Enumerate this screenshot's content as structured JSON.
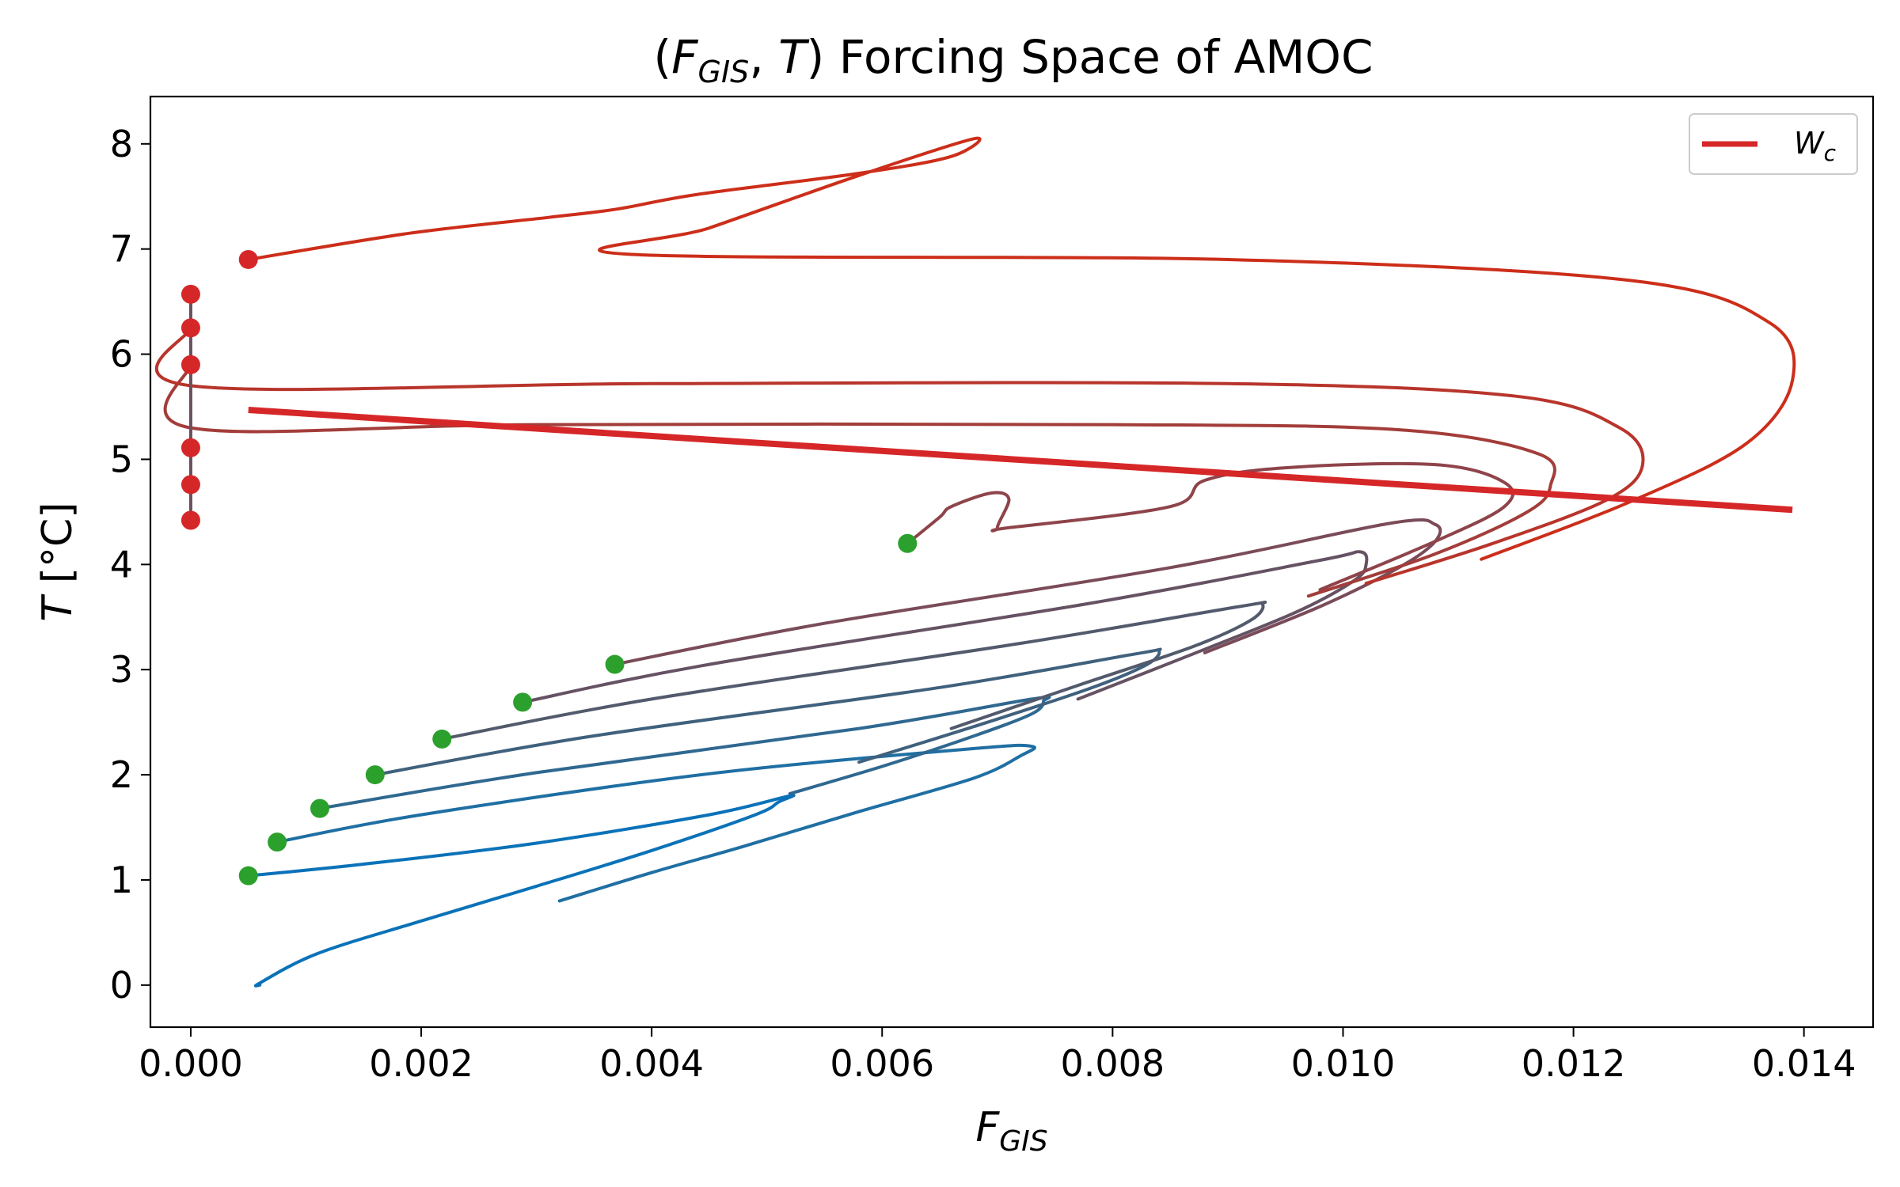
{
  "chart_data": {
    "type": "line",
    "title": "(F_GIS, T) Forcing Space of AMOC",
    "title_parts": {
      "open": "(",
      "f": "F",
      "gis_sub": "GIS",
      "comma": ", ",
      "t": "T",
      "close": ")",
      "rest": " Forcing Space of AMOC"
    },
    "xlabel_parts": {
      "main": "F",
      "sub": "GIS"
    },
    "ylabel_parts": {
      "main": "T",
      "unit": " [°C]"
    },
    "xlim": [
      -0.00035,
      0.0146
    ],
    "ylim": [
      -0.4,
      8.45
    ],
    "xticks": [
      0.0,
      0.002,
      0.004,
      0.006,
      0.008,
      0.01,
      0.012,
      0.014
    ],
    "xtick_labels": [
      "0.000",
      "0.002",
      "0.004",
      "0.006",
      "0.008",
      "0.010",
      "0.012",
      "0.014"
    ],
    "yticks": [
      0,
      1,
      2,
      3,
      4,
      5,
      6,
      7,
      8
    ],
    "ytick_labels": [
      "0",
      "1",
      "2",
      "3",
      "4",
      "5",
      "6",
      "7",
      "8"
    ],
    "grid": false,
    "legend": {
      "position": "top-right",
      "entries": [
        {
          "name_main": "W",
          "name_sub": "c",
          "color": "#d62728"
        }
      ]
    },
    "threshold_line": {
      "name": "W_c",
      "color": "#d62728",
      "x": [
        0.0005,
        0.0139
      ],
      "y": [
        5.47,
        4.52
      ]
    },
    "trajectory_colors": [
      "#0a72b8",
      "#1f6fa3",
      "#2f6890",
      "#40617d",
      "#525a6c",
      "#655263",
      "#7a4b58",
      "#8e444a",
      "#a33d3a",
      "#b8352b",
      "#cc2e1a"
    ],
    "trajectories": [
      {
        "x": [
          0.0005,
          0.0015,
          0.003,
          0.0045,
          0.0052,
          0.0051,
          0.0049,
          0.004,
          0.003,
          0.002,
          0.0011,
          0.0006,
          0.0006
        ],
        "y": [
          1.04,
          1.15,
          1.35,
          1.62,
          1.8,
          1.74,
          1.62,
          1.28,
          0.94,
          0.61,
          0.3,
          0.02,
          0.0
        ]
      },
      {
        "x": [
          0.00075,
          0.002,
          0.0045,
          0.0068,
          0.0073,
          0.0072,
          0.0068,
          0.0058,
          0.0048,
          0.004,
          0.0032
        ],
        "y": [
          1.36,
          1.62,
          2.01,
          2.25,
          2.27,
          2.18,
          1.97,
          1.65,
          1.32,
          1.07,
          0.8
        ]
      },
      {
        "x": [
          0.00112,
          0.003,
          0.0058,
          0.0073,
          0.0074,
          0.0073,
          0.0068,
          0.006,
          0.0052
        ],
        "y": [
          1.68,
          2.02,
          2.44,
          2.72,
          2.7,
          2.58,
          2.37,
          2.08,
          1.82
        ]
      },
      {
        "x": [
          0.0016,
          0.0035,
          0.0065,
          0.0082,
          0.0084,
          0.0083,
          0.0078,
          0.0068,
          0.0058
        ],
        "y": [
          2.0,
          2.37,
          2.83,
          3.15,
          3.18,
          3.05,
          2.82,
          2.46,
          2.12
        ]
      },
      {
        "x": [
          0.00218,
          0.004,
          0.0072,
          0.0091,
          0.0093,
          0.0092,
          0.0087,
          0.0077,
          0.0066
        ],
        "y": [
          2.34,
          2.72,
          3.25,
          3.6,
          3.62,
          3.47,
          3.22,
          2.85,
          2.44
        ]
      },
      {
        "x": [
          0.00288,
          0.0045,
          0.0078,
          0.0098,
          0.01015,
          0.0102,
          0.0101,
          0.0096,
          0.0087,
          0.0077
        ],
        "y": [
          2.69,
          3.05,
          3.63,
          4.04,
          4.12,
          4.0,
          3.85,
          3.55,
          3.15,
          2.72
        ]
      },
      {
        "x": [
          0.00368,
          0.0055,
          0.0085,
          0.0104,
          0.0108,
          0.0108,
          0.0105,
          0.0098,
          0.0088
        ],
        "y": [
          3.05,
          3.44,
          3.97,
          4.39,
          4.38,
          4.22,
          3.98,
          3.6,
          3.16
        ]
      },
      {
        "x": [
          0.00622,
          0.0065,
          0.0066,
          0.00695,
          0.0071,
          0.007,
          0.0071,
          0.0085,
          0.0088,
          0.0095,
          0.0108,
          0.0114,
          0.0114,
          0.0108,
          0.0098
        ],
        "y": [
          4.2,
          4.45,
          4.55,
          4.68,
          4.62,
          4.35,
          4.35,
          4.55,
          4.8,
          4.92,
          4.95,
          4.78,
          4.55,
          4.22,
          3.76
        ]
      },
      {
        "x": [
          0.0,
          0.0,
          0.003,
          0.008,
          0.0105,
          0.0117,
          0.0118,
          0.0116,
          0.0108,
          0.0097
        ],
        "y": [
          5.9,
          5.3,
          5.33,
          5.33,
          5.28,
          5.05,
          4.75,
          4.5,
          4.1,
          3.7
        ]
      },
      {
        "x": [
          0.0,
          0.0,
          0.004,
          0.009,
          0.0115,
          0.0124,
          0.0126,
          0.0123,
          0.0113,
          0.0102
        ],
        "y": [
          6.25,
          5.7,
          5.72,
          5.72,
          5.6,
          5.3,
          4.95,
          4.62,
          4.2,
          3.82
        ]
      },
      {
        "x": [
          0.0005,
          0.0019,
          0.0031,
          0.0037,
          0.0044,
          0.0058,
          0.0066,
          0.0068,
          0.0058,
          0.0045,
          0.0038,
          0.009,
          0.0125,
          0.0137,
          0.0139,
          0.0135,
          0.0125,
          0.0112
        ],
        "y": [
          6.9,
          7.15,
          7.3,
          7.38,
          7.52,
          7.72,
          7.88,
          8.05,
          7.7,
          7.2,
          6.95,
          6.9,
          6.7,
          6.3,
          5.75,
          5.15,
          4.6,
          4.05
        ]
      }
    ],
    "start_points": {
      "green": {
        "color": "#2ca02c",
        "x": [
          0.0005,
          0.00075,
          0.00112,
          0.0016,
          0.00218,
          0.00288,
          0.00368,
          0.00622
        ],
        "y": [
          1.04,
          1.36,
          1.68,
          2.0,
          2.34,
          2.69,
          3.05,
          4.2
        ]
      },
      "red": {
        "color": "#d62728",
        "x": [
          0.0005,
          0.0,
          0.0,
          0.0,
          0.0,
          0.0,
          0.0
        ],
        "y": [
          6.9,
          6.57,
          6.25,
          5.9,
          5.11,
          4.76,
          4.42
        ]
      }
    }
  }
}
